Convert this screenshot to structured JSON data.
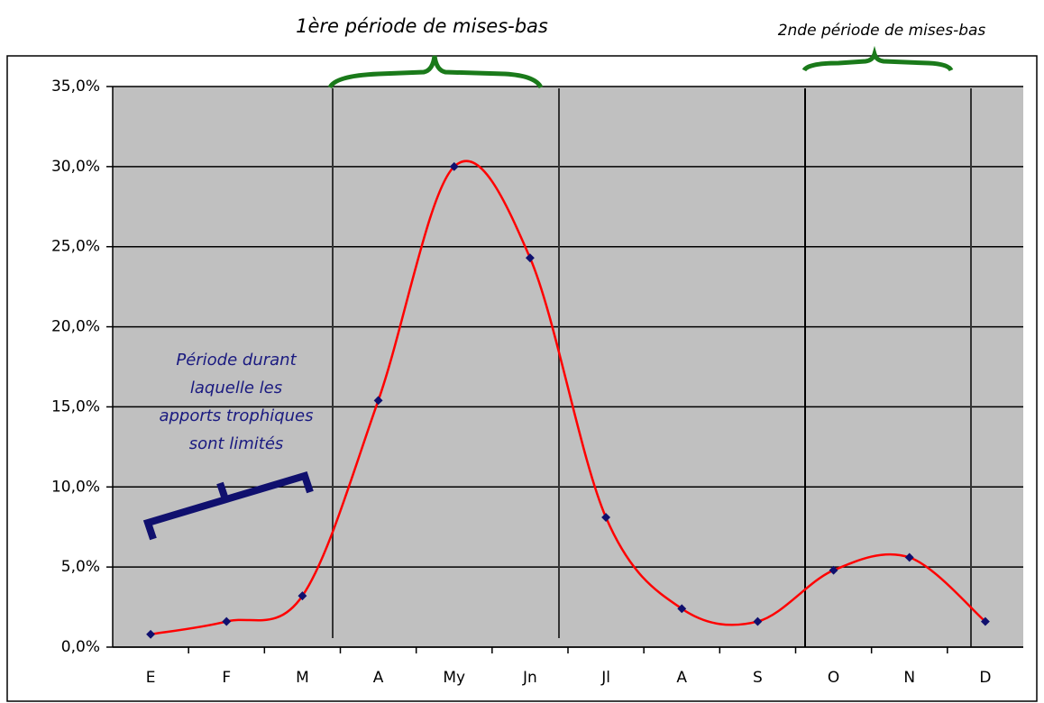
{
  "chart_data": {
    "type": "line",
    "annotations": [
      "1ère période de mises-bas",
      "2nde période de mises-bas"
    ],
    "note_lines": [
      "Période durant",
      "laquelle les",
      "apports trophiques",
      "sont limités"
    ],
    "categories": [
      "E",
      "F",
      "M",
      "A",
      "My",
      "Jn",
      "Jl",
      "A",
      "S",
      "O",
      "N",
      "D"
    ],
    "values": [
      0.8,
      1.6,
      3.2,
      15.4,
      30.0,
      24.3,
      8.1,
      2.4,
      1.6,
      4.8,
      5.6,
      1.6
    ],
    "color": "#ff0000",
    "marker_color": "#10106e",
    "ylim": [
      0,
      35
    ],
    "yticks": [
      {
        "value": 0,
        "label": "0,0%"
      },
      {
        "value": 5,
        "label": "5,0%"
      },
      {
        "value": 10,
        "label": "10,0%"
      },
      {
        "value": 15,
        "label": "15,0%"
      },
      {
        "value": 20,
        "label": "20,0%"
      },
      {
        "value": 25,
        "label": "25,0%"
      },
      {
        "value": 30,
        "label": "30,0%"
      },
      {
        "value": 35,
        "label": "35,0%"
      }
    ],
    "grid": true
  }
}
